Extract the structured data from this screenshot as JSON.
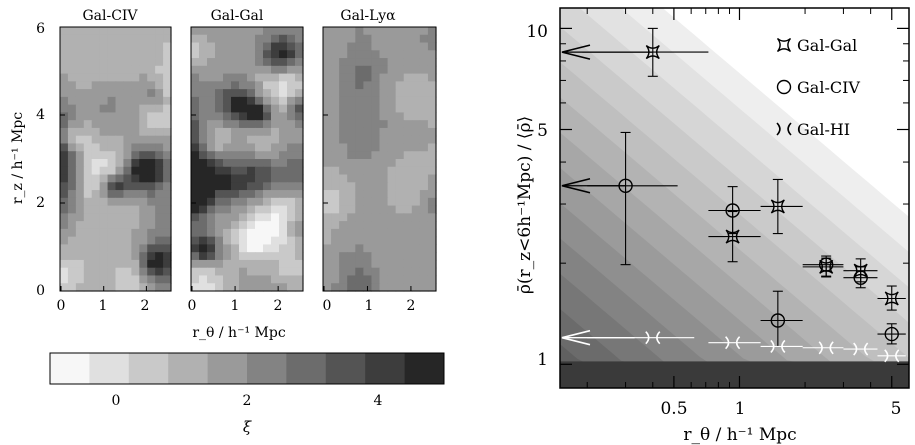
{
  "left_panel": {
    "panel_titles": [
      "Gal-CIV",
      "Gal-Gal",
      "Gal-Lyα"
    ],
    "ylabel": "r_z / h⁻¹ Mpc",
    "xlabel": "r_θ / h⁻¹ Mpc",
    "yticks": [
      "0",
      "2",
      "4",
      "6"
    ],
    "xticks": [
      "0",
      "1",
      "2"
    ],
    "colorbar": {
      "label": "ξ",
      "ticks": [
        "0",
        "2",
        "4"
      ],
      "range": [
        -1,
        5
      ],
      "levels": 10
    },
    "colors": {
      "low": "#f7f7f7",
      "high": "#262626"
    }
  },
  "chart_data": {
    "type": "scatter",
    "xlabel": "r_θ / h⁻¹ Mpc",
    "ylabel": "ρ̄(r_z<6h⁻¹Mpc) / ⟨ρ̄⟩",
    "xscale": "log",
    "yscale": "log",
    "xlim": [
      0.15,
      6
    ],
    "ylim": [
      0.85,
      11.5
    ],
    "xticks": [
      0.5,
      1,
      5
    ],
    "yticks": [
      1,
      5,
      10
    ],
    "legend_position": "top-right",
    "series": [
      {
        "name": "Gal-Gal",
        "marker": "star",
        "points": [
          {
            "x": 0.4,
            "y": 8.5,
            "xerr": [
              0.19,
              0.72
            ],
            "yerr": [
              7.2,
              10.0
            ]
          },
          {
            "x": 0.93,
            "y": 2.4,
            "xerr": [
              0.72,
              1.25
            ],
            "yerr": [
              2.02,
              2.85
            ]
          },
          {
            "x": 1.5,
            "y": 2.95,
            "xerr": [
              1.25,
              1.95
            ],
            "yerr": [
              2.45,
              3.55
            ]
          },
          {
            "x": 2.5,
            "y": 1.95,
            "xerr": [
              1.95,
              3.0
            ],
            "yerr": [
              1.82,
              2.07
            ]
          },
          {
            "x": 3.6,
            "y": 1.9,
            "xerr": [
              3.0,
              4.3
            ],
            "yerr": [
              1.76,
              2.06
            ]
          },
          {
            "x": 5.0,
            "y": 1.57,
            "xerr": [
              4.3,
              5.8
            ],
            "yerr": [
              1.45,
              1.71
            ]
          }
        ]
      },
      {
        "name": "Gal-CIV",
        "marker": "circle",
        "points": [
          {
            "x": 0.3,
            "y": 3.4,
            "xerr": [
              0.2,
              0.52
            ],
            "yerr": [
              1.98,
              4.9
            ]
          },
          {
            "x": 0.93,
            "y": 2.87,
            "xerr": [
              0.72,
              1.25
            ],
            "yerr": [
              2.45,
              3.38
            ]
          },
          {
            "x": 1.5,
            "y": 1.35,
            "xerr": [
              1.25,
              1.95
            ],
            "yerr": [
              1.13,
              1.65
            ]
          },
          {
            "x": 2.5,
            "y": 1.98,
            "xerr": [
              1.95,
              3.0
            ],
            "yerr": [
              1.83,
              2.1
            ]
          },
          {
            "x": 3.6,
            "y": 1.81,
            "xerr": [
              3.0,
              4.3
            ],
            "yerr": [
              1.69,
              1.95
            ]
          },
          {
            "x": 5.0,
            "y": 1.23,
            "xerr": [
              4.3,
              5.8
            ],
            "yerr": [
              1.15,
              1.32
            ]
          }
        ]
      },
      {
        "name": "Gal-HI",
        "marker": "bracket",
        "points": [
          {
            "x": 0.4,
            "y": 1.2,
            "xerr": [
              0.2,
              0.62
            ]
          },
          {
            "x": 0.93,
            "y": 1.16,
            "xerr": [
              0.72,
              1.25
            ]
          },
          {
            "x": 1.5,
            "y": 1.13,
            "xerr": [
              1.25,
              1.95
            ]
          },
          {
            "x": 2.5,
            "y": 1.12,
            "xerr": [
              1.95,
              3.0
            ]
          },
          {
            "x": 3.6,
            "y": 1.11,
            "xerr": [
              3.0,
              4.3
            ]
          },
          {
            "x": 5.0,
            "y": 1.06,
            "xerr": [
              4.3,
              5.8
            ]
          }
        ]
      }
    ],
    "arrows": [
      {
        "y": 8.5,
        "x_from": 0.4
      },
      {
        "y": 3.4,
        "x_from": 0.3
      },
      {
        "y": 1.2,
        "x_from": 0.33
      }
    ]
  }
}
